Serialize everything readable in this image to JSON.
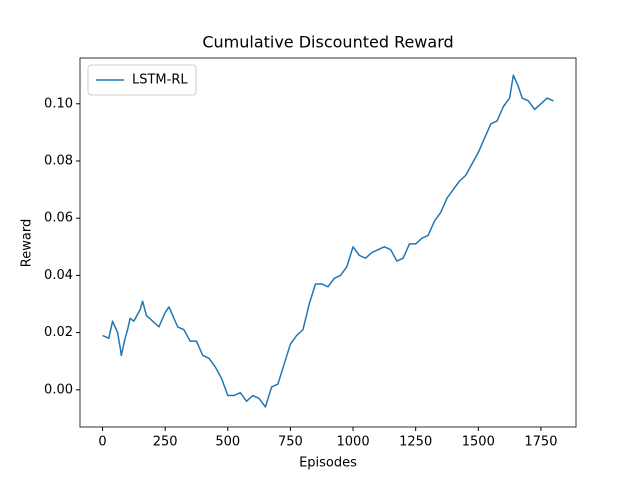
{
  "chart_data": {
    "type": "line",
    "title": "Cumulative Discounted Reward",
    "x_label": "Episodes",
    "y_label": "Reward",
    "x": [
      0,
      25,
      40,
      60,
      70,
      75,
      90,
      100,
      110,
      125,
      150,
      160,
      175,
      200,
      225,
      250,
      265,
      280,
      300,
      325,
      350,
      375,
      400,
      425,
      450,
      475,
      500,
      525,
      550,
      575,
      600,
      625,
      650,
      675,
      700,
      725,
      750,
      775,
      800,
      825,
      850,
      875,
      900,
      925,
      950,
      975,
      1000,
      1025,
      1050,
      1075,
      1100,
      1125,
      1150,
      1175,
      1200,
      1225,
      1250,
      1275,
      1300,
      1325,
      1350,
      1375,
      1400,
      1425,
      1450,
      1475,
      1500,
      1525,
      1550,
      1575,
      1600,
      1625,
      1640,
      1660,
      1675,
      1700,
      1725,
      1750,
      1775,
      1800
    ],
    "series": [
      {
        "name": "LSTM-RL",
        "color": "#1f77b4",
        "values": [
          0.019,
          0.018,
          0.024,
          0.02,
          0.015,
          0.012,
          0.018,
          0.021,
          0.025,
          0.024,
          0.028,
          0.031,
          0.026,
          0.024,
          0.022,
          0.027,
          0.029,
          0.026,
          0.022,
          0.021,
          0.017,
          0.017,
          0.012,
          0.011,
          0.008,
          0.004,
          -0.002,
          -0.002,
          -0.001,
          -0.004,
          -0.002,
          -0.003,
          -0.006,
          0.001,
          0.002,
          0.009,
          0.016,
          0.019,
          0.021,
          0.03,
          0.037,
          0.037,
          0.036,
          0.039,
          0.04,
          0.043,
          0.05,
          0.047,
          0.046,
          0.048,
          0.049,
          0.05,
          0.049,
          0.045,
          0.046,
          0.051,
          0.051,
          0.053,
          0.054,
          0.059,
          0.062,
          0.067,
          0.07,
          0.073,
          0.075,
          0.079,
          0.083,
          0.088,
          0.093,
          0.094,
          0.099,
          0.102,
          0.11,
          0.106,
          0.102,
          0.101,
          0.098,
          0.1,
          0.102,
          0.101
        ]
      }
    ],
    "xlim": [
      -90,
      1890
    ],
    "ylim": [
      -0.013,
      0.116
    ],
    "xticks": [
      0,
      250,
      500,
      750,
      1000,
      1250,
      1500,
      1750
    ],
    "yticks": [
      {
        "value": 0,
        "label": "0.00"
      },
      {
        "value": 0.02,
        "label": "0.02"
      },
      {
        "value": 0.04,
        "label": "0.04"
      },
      {
        "value": 0.06,
        "label": "0.06"
      },
      {
        "value": 0.08,
        "label": "0.08"
      },
      {
        "value": 0.1,
        "label": "0.10"
      }
    ],
    "legend": "upper left",
    "grid": false
  }
}
